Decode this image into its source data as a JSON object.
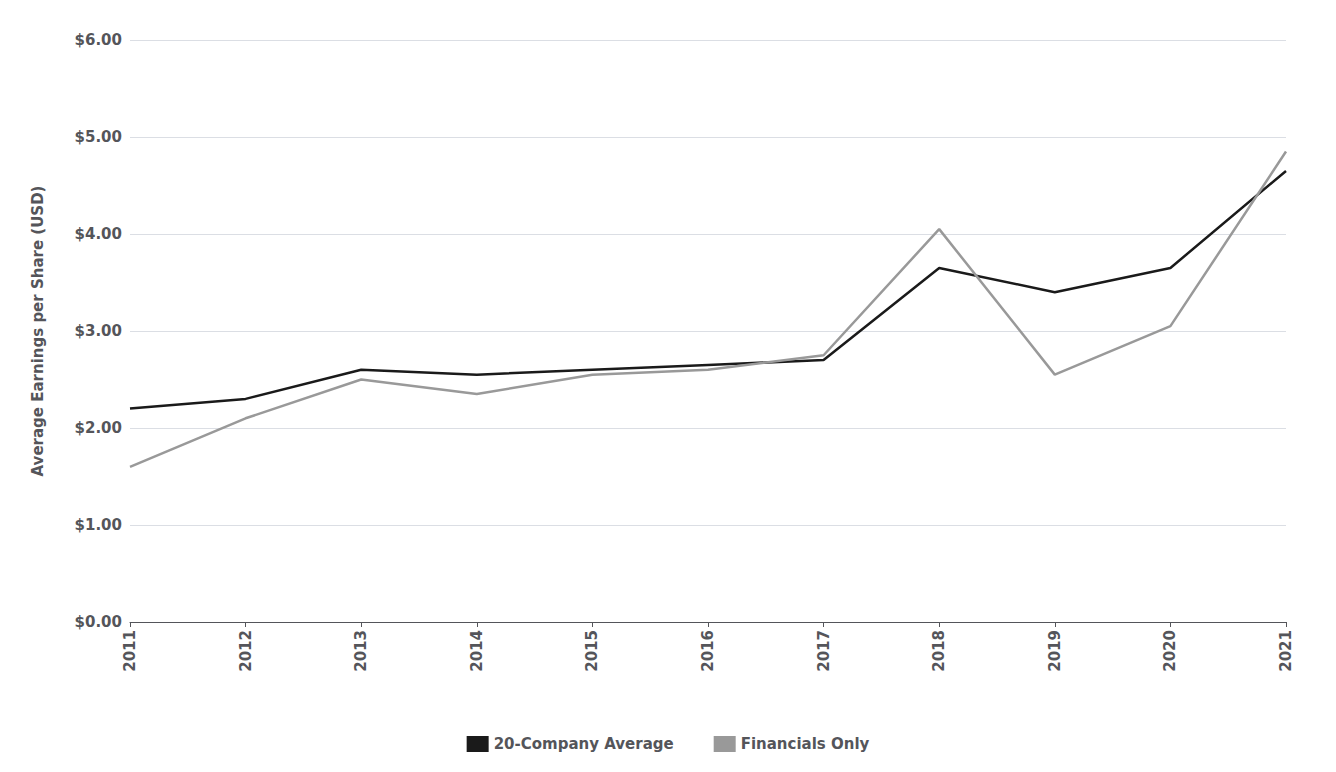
{
  "chart_data": {
    "type": "line",
    "ylabel": "Average Earnings per Share (USD)",
    "categories": [
      "2011",
      "2012",
      "2013",
      "2014",
      "2015",
      "2016",
      "2017",
      "2018",
      "2019",
      "2020",
      "2021"
    ],
    "series": [
      {
        "name": "20-Company Average",
        "color": "#1a1a1a",
        "values": [
          2.2,
          2.3,
          2.6,
          2.55,
          2.6,
          2.65,
          2.7,
          3.65,
          3.4,
          3.65,
          4.65
        ]
      },
      {
        "name": "Financials Only",
        "color": "#999999",
        "values": [
          1.6,
          2.1,
          2.5,
          2.35,
          2.55,
          2.6,
          2.75,
          4.05,
          2.55,
          3.05,
          4.85
        ]
      }
    ],
    "ylim": [
      0.0,
      6.0
    ],
    "yticks": [
      {
        "value": 0.0,
        "label": "$0.00"
      },
      {
        "value": 1.0,
        "label": "$1.00"
      },
      {
        "value": 2.0,
        "label": "$2.00"
      },
      {
        "value": 3.0,
        "label": "$3.00"
      },
      {
        "value": 4.0,
        "label": "$4.00"
      },
      {
        "value": 5.0,
        "label": "$5.00"
      },
      {
        "value": 6.0,
        "label": "$6.00"
      }
    ],
    "grid": true,
    "legend": "bottom"
  }
}
